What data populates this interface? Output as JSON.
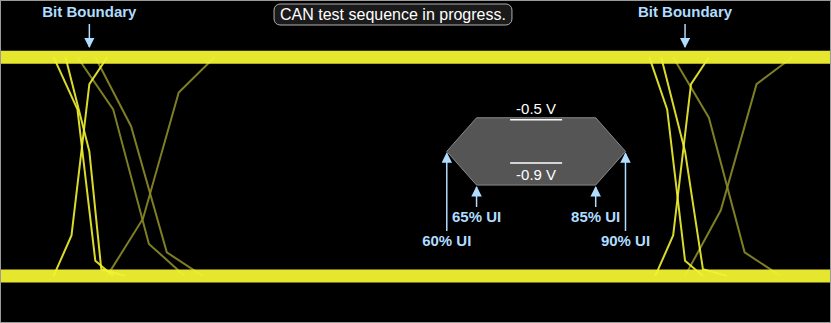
{
  "chart_data": {
    "type": "line",
    "title": "CAN test sequence in progress.",
    "xlim": [
      -15,
      124.5
    ],
    "ylim": [
      -1.72,
      0.2
    ],
    "tick_labels": false,
    "series": [
      {
        "color": "#8c8c28",
        "line_style": "solid",
        "x": [
          -2,
          4,
          10,
          16
        ],
        "values": [
          -0.14,
          -0.45,
          -1.25,
          -1.44
        ]
      },
      {
        "color": "#8c8c28",
        "line_style": "solid",
        "x": [
          1,
          7,
          13,
          19
        ],
        "values": [
          -0.14,
          -0.55,
          -1.3,
          -1.44
        ]
      },
      {
        "color": "#8c8c28",
        "line_style": "solid",
        "x": [
          3,
          9,
          15,
          21
        ],
        "values": [
          -1.44,
          -1.1,
          -0.35,
          -0.14
        ]
      },
      {
        "color": "#8c8c28",
        "line_style": "solid",
        "x": [
          98,
          104,
          110,
          116
        ],
        "values": [
          -0.14,
          -0.5,
          -1.3,
          -1.44
        ]
      },
      {
        "color": "#8c8c28",
        "line_style": "solid",
        "x": [
          100,
          106,
          112,
          118
        ],
        "values": [
          -1.44,
          -1.05,
          -0.3,
          -0.14
        ]
      },
      {
        "color": "#f2f230",
        "line_style": "solid",
        "x": [
          -6,
          -2,
          1,
          4
        ],
        "values": [
          -0.14,
          -0.45,
          -1.35,
          -1.44
        ]
      },
      {
        "color": "#f2f230",
        "line_style": "solid",
        "x": [
          -6,
          -3,
          0,
          3
        ],
        "values": [
          -1.44,
          -1.2,
          -0.3,
          -0.14
        ]
      },
      {
        "color": "#f2f230",
        "line_style": "solid",
        "x": [
          -4,
          0,
          2,
          6
        ],
        "values": [
          -0.14,
          -0.7,
          -1.4,
          -1.44
        ]
      },
      {
        "color": "#f2f230",
        "line_style": "solid",
        "x": [
          94,
          97,
          100,
          103
        ],
        "values": [
          -0.14,
          -0.45,
          -1.35,
          -1.44
        ]
      },
      {
        "color": "#f2f230",
        "line_style": "solid",
        "x": [
          95,
          98,
          101,
          104
        ],
        "values": [
          -1.44,
          -1.2,
          -0.3,
          -0.14
        ]
      },
      {
        "color": "#f2f230",
        "line_style": "solid",
        "x": [
          96,
          100,
          103,
          107
        ],
        "values": [
          -0.14,
          -0.7,
          -1.4,
          -1.44
        ]
      },
      {
        "color": "#f2f230",
        "line_style": "thick",
        "x": [
          -15,
          124.5
        ],
        "values": [
          -0.14,
          -0.14
        ]
      },
      {
        "color": "#f2f230",
        "line_style": "thick",
        "x": [
          -15,
          124.5
        ],
        "values": [
          -1.44,
          -1.44
        ]
      }
    ],
    "mask": {
      "color": "#5e5e5e",
      "x": [
        60,
        65,
        85,
        90,
        85,
        65
      ],
      "values": [
        -0.7,
        -0.5,
        -0.5,
        -0.7,
        -0.9,
        -0.9
      ]
    },
    "boundary_labels": [
      {
        "text": "Bit Boundary",
        "x": 0
      },
      {
        "text": "Bit Boundary",
        "x": 100
      }
    ],
    "mask_x_labels": [
      {
        "text": "60% UI",
        "x": 60
      },
      {
        "text": "65% UI",
        "x": 65
      },
      {
        "text": "85% UI",
        "x": 85
      },
      {
        "text": "90% UI",
        "x": 90
      }
    ],
    "mask_y_labels": [
      {
        "text": "-0.5 V",
        "y": -0.5
      },
      {
        "text": "-0.9 V",
        "y": -0.9
      }
    ]
  }
}
